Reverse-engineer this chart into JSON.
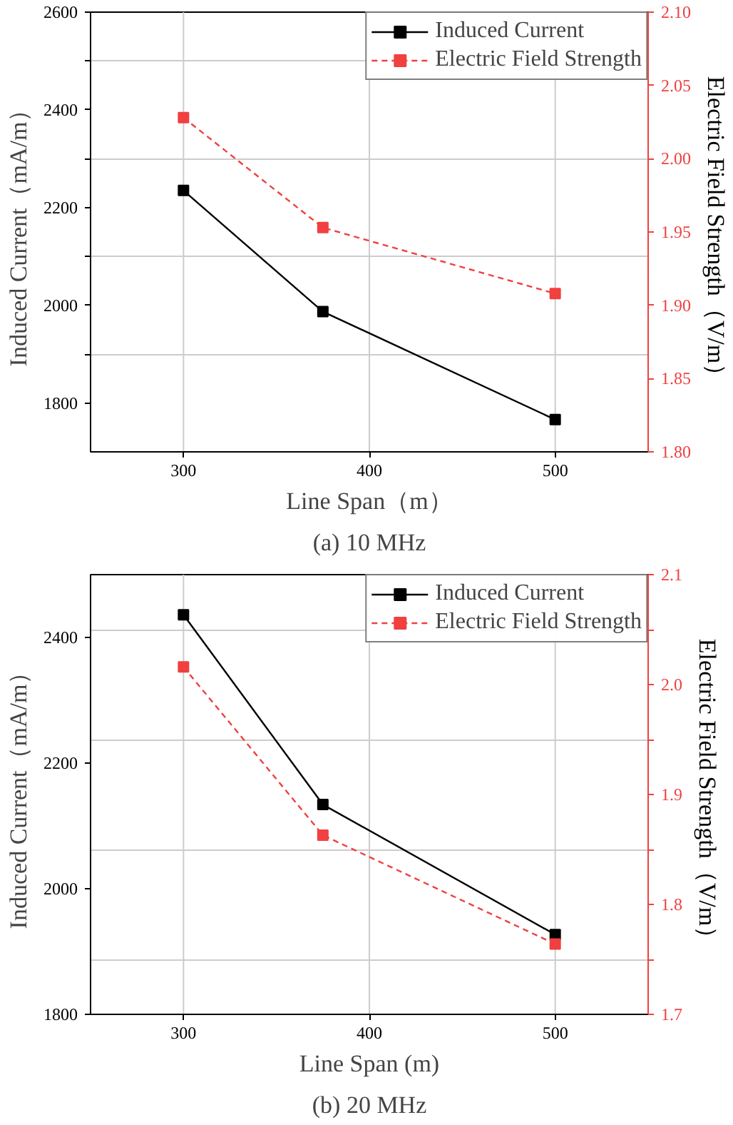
{
  "chart_data": [
    {
      "type": "line",
      "title": "(a) 10 MHz",
      "xlabel": "Line Span（m）",
      "ylabel": "Induced Current（mA/m）",
      "y2label": "Electric Field Strength（V/m）",
      "x": [
        300,
        375,
        500
      ],
      "xlim": [
        250,
        550
      ],
      "xticks": [
        300,
        400,
        500
      ],
      "ylim": [
        1700,
        2600
      ],
      "yticks": [
        1800,
        {
          "value": 1900,
          "label": null
        },
        2000,
        {
          "value": 2100,
          "label": null
        },
        2200,
        {
          "value": 2300,
          "label": null
        },
        2400,
        {
          "value": 2500,
          "label": null
        },
        2600
      ],
      "y2lim": [
        1.8,
        2.1
      ],
      "y2ticks": [
        {
          "value": 1.8,
          "label": "1.80"
        },
        1.85,
        {
          "value": 1.9,
          "label": "1.90"
        },
        1.95,
        {
          "value": 2.0,
          "label": "2.00"
        },
        2.05,
        {
          "value": 2.1,
          "label": "2.10"
        }
      ],
      "grid": true,
      "legend": "top right",
      "marker": "square",
      "series": [
        {
          "name": "Induced Current",
          "color": "#000000",
          "line_style": "solid",
          "values": [
            2235,
            1987,
            1766
          ]
        },
        {
          "name": "Electric Field Strength",
          "color": "#f04040",
          "line_style": "dashed",
          "axis": "y2",
          "values": [
            2.028,
            1.953,
            1.908
          ]
        }
      ]
    },
    {
      "type": "line",
      "title": "(b) 20 MHz",
      "xlabel": "Line Span (m)",
      "ylabel": "Induced Current（mA/m）",
      "y2label": "Electric Field Strength（V/m）",
      "x": [
        300,
        375,
        500
      ],
      "xlim": [
        250,
        550
      ],
      "xticks": [
        300,
        400,
        500
      ],
      "ylim": [
        1800,
        2500
      ],
      "yticks": [
        1800,
        2000,
        2200,
        2400
      ],
      "y2lim": [
        1.7,
        2.1
      ],
      "y2ticks": [
        1.7,
        {
          "value": 1.75,
          "label": null
        },
        1.8,
        {
          "value": 1.85,
          "label": null
        },
        1.9,
        {
          "value": 1.95,
          "label": null
        },
        {
          "value": 2.0,
          "label": "2.0"
        },
        {
          "value": 2.05,
          "label": null
        },
        2.1
      ],
      "grid": true,
      "legend": "top right",
      "marker": "square",
      "series": [
        {
          "name": "Induced Current",
          "color": "#000000",
          "line_style": "solid",
          "values": [
            2436,
            2134,
            1927
          ]
        },
        {
          "name": "Electric Field Strength",
          "color": "#f04040",
          "line_style": "dashed",
          "axis": "y2",
          "values": [
            2.016,
            1.863,
            1.764
          ]
        }
      ]
    }
  ]
}
